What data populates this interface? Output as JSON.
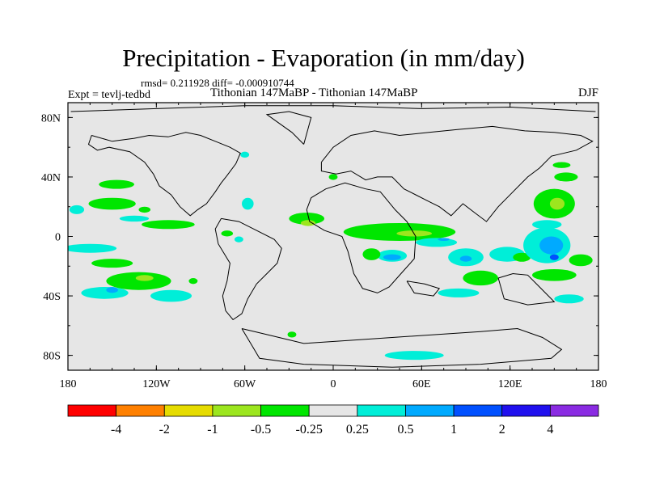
{
  "chart_data": {
    "type": "heatmap",
    "title": "Precipitation - Evaporation (in mm/day)",
    "stats_line": "rmsd= 0.211928 diff= -0.000910744",
    "experiment": "Expt = tevlj-tedbd",
    "comparison": "Tithonian 147MaBP - Tithonian 147MaBP",
    "season": "DJF",
    "x_range": [
      -180,
      180
    ],
    "y_range": [
      -90,
      90
    ],
    "x_ticks": [
      {
        "value": -180,
        "label": "180"
      },
      {
        "value": -120,
        "label": "120W"
      },
      {
        "value": -60,
        "label": "60W"
      },
      {
        "value": 0,
        "label": "0"
      },
      {
        "value": 60,
        "label": "60E"
      },
      {
        "value": 120,
        "label": "120E"
      },
      {
        "value": 180,
        "label": "180"
      }
    ],
    "y_ticks": [
      {
        "value": 80,
        "label": "80N"
      },
      {
        "value": 40,
        "label": "40N"
      },
      {
        "value": 0,
        "label": "0"
      },
      {
        "value": -40,
        "label": "40S"
      },
      {
        "value": -80,
        "label": "80S"
      }
    ],
    "colorbar": {
      "colors": [
        "#ff0000",
        "#ff8000",
        "#e6dc00",
        "#9ce61e",
        "#00e600",
        "#e6e6e6",
        "#00eed8",
        "#00aaff",
        "#0050ff",
        "#2010ee",
        "#8a2be2"
      ],
      "labels": [
        "-4",
        "-2",
        "-1",
        "-0.5",
        "-0.25",
        "0.25",
        "0.5",
        "1",
        "2",
        "4"
      ]
    },
    "regions": [
      {
        "level": 4,
        "lon": -147,
        "lat": 35,
        "rlon": 12,
        "rlat": 3
      },
      {
        "level": 4,
        "lon": -150,
        "lat": 22,
        "rlon": 16,
        "rlat": 4
      },
      {
        "level": 6,
        "lon": -174,
        "lat": 18,
        "rlon": 5,
        "rlat": 3
      },
      {
        "level": 6,
        "lon": -135,
        "lat": 12,
        "rlon": 10,
        "rlat": 2
      },
      {
        "level": 4,
        "lon": -128,
        "lat": 18,
        "rlon": 4,
        "rlat": 2
      },
      {
        "level": 4,
        "lon": -112,
        "lat": 8,
        "rlon": 18,
        "rlat": 3
      },
      {
        "level": 6,
        "lon": -165,
        "lat": -8,
        "rlon": 18,
        "rlat": 3
      },
      {
        "level": 4,
        "lon": -150,
        "lat": -18,
        "rlon": 14,
        "rlat": 3
      },
      {
        "level": 4,
        "lon": -132,
        "lat": -30,
        "rlon": 22,
        "rlat": 6
      },
      {
        "level": 3,
        "lon": -128,
        "lat": -28,
        "rlon": 6,
        "rlat": 2
      },
      {
        "level": 6,
        "lon": -155,
        "lat": -38,
        "rlon": 16,
        "rlat": 4
      },
      {
        "level": 7,
        "lon": -150,
        "lat": -36,
        "rlon": 4,
        "rlat": 2
      },
      {
        "level": 6,
        "lon": -110,
        "lat": -40,
        "rlon": 14,
        "rlat": 4
      },
      {
        "level": 6,
        "lon": -58,
        "lat": 22,
        "rlon": 4,
        "rlat": 4
      },
      {
        "level": 4,
        "lon": -72,
        "lat": 2,
        "rlon": 4,
        "rlat": 2
      },
      {
        "level": 6,
        "lon": -64,
        "lat": -2,
        "rlon": 3,
        "rlat": 2
      },
      {
        "level": 6,
        "lon": -60,
        "lat": 55,
        "rlon": 3,
        "rlat": 2
      },
      {
        "level": 4,
        "lon": -18,
        "lat": 12,
        "rlon": 12,
        "rlat": 4
      },
      {
        "level": 3,
        "lon": -17,
        "lat": 9,
        "rlon": 5,
        "rlat": 2
      },
      {
        "level": 4,
        "lon": 45,
        "lat": 3,
        "rlon": 38,
        "rlat": 6
      },
      {
        "level": 3,
        "lon": 55,
        "lat": 2,
        "rlon": 12,
        "rlat": 2
      },
      {
        "level": 6,
        "lon": 70,
        "lat": -4,
        "rlon": 14,
        "rlat": 3
      },
      {
        "level": 7,
        "lon": 75,
        "lat": -2,
        "rlon": 4,
        "rlat": 1
      },
      {
        "level": 6,
        "lon": 40,
        "lat": -13,
        "rlon": 10,
        "rlat": 4
      },
      {
        "level": 7,
        "lon": 40,
        "lat": -14,
        "rlon": 6,
        "rlat": 2
      },
      {
        "level": 4,
        "lon": 26,
        "lat": -12,
        "rlon": 6,
        "rlat": 4
      },
      {
        "level": 6,
        "lon": 90,
        "lat": -14,
        "rlon": 12,
        "rlat": 6
      },
      {
        "level": 7,
        "lon": 90,
        "lat": -15,
        "rlon": 4,
        "rlat": 2
      },
      {
        "level": 6,
        "lon": 118,
        "lat": -12,
        "rlon": 12,
        "rlat": 5
      },
      {
        "level": 4,
        "lon": 128,
        "lat": -14,
        "rlon": 6,
        "rlat": 3
      },
      {
        "level": 6,
        "lon": 145,
        "lat": -6,
        "rlon": 16,
        "rlat": 12
      },
      {
        "level": 7,
        "lon": 148,
        "lat": -6,
        "rlon": 8,
        "rlat": 6
      },
      {
        "level": 8,
        "lon": 150,
        "lat": -14,
        "rlon": 3,
        "rlat": 2
      },
      {
        "level": 4,
        "lon": 150,
        "lat": 22,
        "rlon": 14,
        "rlat": 10
      },
      {
        "level": 3,
        "lon": 152,
        "lat": 22,
        "rlon": 5,
        "rlat": 4
      },
      {
        "level": 6,
        "lon": 145,
        "lat": 8,
        "rlon": 10,
        "rlat": 3
      },
      {
        "level": 4,
        "lon": 168,
        "lat": -16,
        "rlon": 8,
        "rlat": 4
      },
      {
        "level": 4,
        "lon": 100,
        "lat": -28,
        "rlon": 12,
        "rlat": 5
      },
      {
        "level": 4,
        "lon": 150,
        "lat": -26,
        "rlon": 15,
        "rlat": 4
      },
      {
        "level": 6,
        "lon": 85,
        "lat": -38,
        "rlon": 14,
        "rlat": 3
      },
      {
        "level": 6,
        "lon": 160,
        "lat": -42,
        "rlon": 10,
        "rlat": 3
      },
      {
        "level": 4,
        "lon": 158,
        "lat": 40,
        "rlon": 8,
        "rlat": 3
      },
      {
        "level": 6,
        "lon": 55,
        "lat": -80,
        "rlon": 20,
        "rlat": 3
      },
      {
        "level": 4,
        "lon": -28,
        "lat": -66,
        "rlon": 3,
        "rlat": 2
      },
      {
        "level": 4,
        "lon": -95,
        "lat": -30,
        "rlon": 3,
        "rlat": 2
      },
      {
        "level": 4,
        "lon": 0,
        "lat": 40,
        "rlon": 3,
        "rlat": 2
      },
      {
        "level": 4,
        "lon": 155,
        "lat": 48,
        "rlon": 6,
        "rlat": 2
      }
    ],
    "coastlines": [
      [
        [
          -164,
          68
        ],
        [
          -150,
          64
        ],
        [
          -135,
          66
        ],
        [
          -125,
          68
        ],
        [
          -112,
          67
        ],
        [
          -100,
          70
        ],
        [
          -90,
          68
        ],
        [
          -80,
          64
        ],
        [
          -70,
          60
        ],
        [
          -63,
          56
        ],
        [
          -66,
          49
        ],
        [
          -72,
          41
        ],
        [
          -76,
          36
        ],
        [
          -80,
          30
        ],
        [
          -86,
          22
        ],
        [
          -92,
          18
        ],
        [
          -97,
          14
        ],
        [
          -104,
          20
        ],
        [
          -110,
          28
        ],
        [
          -118,
          34
        ],
        [
          -122,
          42
        ],
        [
          -128,
          50
        ],
        [
          -138,
          57
        ],
        [
          -152,
          60
        ],
        [
          -160,
          58
        ],
        [
          -166,
          62
        ],
        [
          -164,
          68
        ]
      ],
      [
        [
          -76,
          12
        ],
        [
          -64,
          10
        ],
        [
          -52,
          4
        ],
        [
          -40,
          -2
        ],
        [
          -35,
          -8
        ],
        [
          -38,
          -18
        ],
        [
          -45,
          -25
        ],
        [
          -52,
          -32
        ],
        [
          -58,
          -42
        ],
        [
          -62,
          -52
        ],
        [
          -68,
          -56
        ],
        [
          -73,
          -50
        ],
        [
          -75,
          -40
        ],
        [
          -72,
          -30
        ],
        [
          -70,
          -18
        ],
        [
          -78,
          -5
        ],
        [
          -80,
          5
        ],
        [
          -76,
          12
        ]
      ],
      [
        [
          -15,
          26
        ],
        [
          -5,
          32
        ],
        [
          8,
          36
        ],
        [
          22,
          32
        ],
        [
          32,
          30
        ],
        [
          42,
          18
        ],
        [
          50,
          10
        ],
        [
          56,
          0
        ],
        [
          55,
          -15
        ],
        [
          46,
          -25
        ],
        [
          38,
          -34
        ],
        [
          30,
          -38
        ],
        [
          20,
          -35
        ],
        [
          14,
          -25
        ],
        [
          10,
          -10
        ],
        [
          6,
          0
        ],
        [
          -6,
          4
        ],
        [
          -16,
          10
        ],
        [
          -18,
          18
        ],
        [
          -15,
          26
        ]
      ],
      [
        [
          -8,
          50
        ],
        [
          0,
          60
        ],
        [
          12,
          68
        ],
        [
          28,
          71
        ],
        [
          45,
          68
        ],
        [
          65,
          70
        ],
        [
          85,
          72
        ],
        [
          108,
          74
        ],
        [
          130,
          71
        ],
        [
          150,
          70
        ],
        [
          168,
          68
        ],
        [
          176,
          64
        ],
        [
          165,
          58
        ],
        [
          148,
          54
        ],
        [
          140,
          46
        ],
        [
          132,
          40
        ],
        [
          122,
          30
        ],
        [
          112,
          20
        ],
        [
          104,
          10
        ],
        [
          96,
          16
        ],
        [
          88,
          22
        ],
        [
          80,
          14
        ],
        [
          72,
          20
        ],
        [
          64,
          24
        ],
        [
          56,
          28
        ],
        [
          48,
          32
        ],
        [
          40,
          40
        ],
        [
          30,
          40
        ],
        [
          22,
          38
        ],
        [
          12,
          44
        ],
        [
          2,
          42
        ],
        [
          -8,
          44
        ],
        [
          -8,
          50
        ]
      ],
      [
        [
          -20,
          62
        ],
        [
          -28,
          70
        ],
        [
          -45,
          82
        ],
        [
          -30,
          84
        ],
        [
          -15,
          80
        ],
        [
          -20,
          62
        ]
      ],
      [
        [
          50,
          -30
        ],
        [
          62,
          -32
        ],
        [
          72,
          -35
        ],
        [
          68,
          -40
        ],
        [
          55,
          -38
        ],
        [
          50,
          -30
        ]
      ],
      [
        [
          112,
          -28
        ],
        [
          122,
          -25
        ],
        [
          132,
          -26
        ],
        [
          140,
          -34
        ],
        [
          150,
          -44
        ],
        [
          132,
          -46
        ],
        [
          116,
          -42
        ],
        [
          112,
          -28
        ]
      ],
      [
        [
          -62,
          -62
        ],
        [
          -45,
          -66
        ],
        [
          -20,
          -72
        ],
        [
          10,
          -70
        ],
        [
          40,
          -68
        ],
        [
          70,
          -66
        ],
        [
          100,
          -64
        ],
        [
          125,
          -62
        ],
        [
          142,
          -68
        ],
        [
          155,
          -76
        ],
        [
          148,
          -82
        ],
        [
          100,
          -86
        ],
        [
          40,
          -88
        ],
        [
          -20,
          -86
        ],
        [
          -50,
          -82
        ],
        [
          -56,
          -72
        ],
        [
          -62,
          -62
        ]
      ],
      [
        [
          -178,
          84
        ],
        [
          -120,
          86
        ],
        [
          -60,
          88
        ],
        [
          0,
          88
        ],
        [
          60,
          86
        ],
        [
          120,
          87
        ],
        [
          178,
          84
        ]
      ]
    ]
  }
}
